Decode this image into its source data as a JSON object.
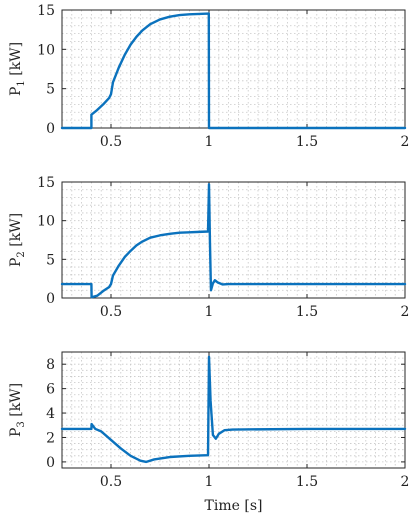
{
  "chart_data": [
    {
      "type": "line",
      "ylabel": {
        "base": "P",
        "sub": "1",
        "unit": " [kW]"
      },
      "xlim": [
        0.25,
        2
      ],
      "ylim": [
        0,
        15
      ],
      "xticks": [
        "0.5",
        "1",
        "1.5",
        "2"
      ],
      "yticks": [
        "0",
        "5",
        "10",
        "15"
      ],
      "grid": true,
      "color": "#0b72bd",
      "series": [
        {
          "x": [
            0.25,
            0.4,
            0.4,
            0.43,
            0.46,
            0.49,
            0.5,
            0.51,
            0.54,
            0.57,
            0.6,
            0.63,
            0.66,
            0.7,
            0.75,
            0.8,
            0.85,
            0.9,
            0.95,
            0.999,
            1.0,
            1.05,
            1.5,
            2.0
          ],
          "y": [
            0,
            0,
            1.7,
            2.3,
            3.0,
            3.8,
            4.3,
            5.8,
            7.7,
            9.3,
            10.6,
            11.6,
            12.4,
            13.2,
            13.8,
            14.15,
            14.35,
            14.45,
            14.5,
            14.55,
            0,
            0,
            0,
            0
          ]
        }
      ]
    },
    {
      "type": "line",
      "ylabel": {
        "base": "P",
        "sub": "2",
        "unit": " [kW]"
      },
      "xlim": [
        0.25,
        2
      ],
      "ylim": [
        0,
        15
      ],
      "xticks": [
        "0.5",
        "1",
        "1.5",
        "2"
      ],
      "yticks": [
        "0",
        "5",
        "10",
        "15"
      ],
      "grid": true,
      "color": "#0b72bd",
      "series": [
        {
          "x": [
            0.25,
            0.4,
            0.401,
            0.43,
            0.46,
            0.49,
            0.5,
            0.51,
            0.54,
            0.57,
            0.6,
            0.63,
            0.66,
            0.7,
            0.75,
            0.8,
            0.85,
            0.9,
            0.95,
            0.995,
            1.0,
            1.005,
            1.01,
            1.02,
            1.03,
            1.045,
            1.07,
            1.1,
            1.5,
            2.0
          ],
          "y": [
            1.8,
            1.8,
            0.1,
            0.3,
            0.9,
            1.4,
            1.8,
            2.9,
            4.2,
            5.3,
            6.1,
            6.8,
            7.3,
            7.8,
            8.1,
            8.3,
            8.45,
            8.5,
            8.55,
            8.6,
            14.7,
            7.0,
            1.0,
            1.9,
            2.3,
            2.0,
            1.75,
            1.8,
            1.8,
            1.8
          ]
        }
      ]
    },
    {
      "type": "line",
      "ylabel": {
        "base": "P",
        "sub": "3",
        "unit": " [kW]"
      },
      "xlim": [
        0.25,
        2
      ],
      "ylim": [
        -0.5,
        9
      ],
      "xticks": [
        "0.5",
        "1",
        "1.5",
        "2"
      ],
      "yticks": [
        "0",
        "2",
        "4",
        "6",
        "8"
      ],
      "yticksValues": [
        0,
        2,
        4,
        6,
        8
      ],
      "xlabel": "Time [s]",
      "grid": true,
      "color": "#0b72bd",
      "series": [
        {
          "x": [
            0.25,
            0.4,
            0.401,
            0.42,
            0.45,
            0.5,
            0.55,
            0.6,
            0.65,
            0.68,
            0.72,
            0.8,
            0.9,
            0.995,
            1.0,
            1.008,
            1.02,
            1.035,
            1.05,
            1.08,
            1.12,
            1.5,
            2.0
          ],
          "y": [
            2.7,
            2.7,
            3.1,
            2.7,
            2.5,
            1.8,
            1.1,
            0.5,
            0.1,
            0.0,
            0.2,
            0.4,
            0.5,
            0.55,
            8.6,
            5.0,
            2.2,
            1.9,
            2.3,
            2.6,
            2.65,
            2.7,
            2.7
          ]
        }
      ]
    }
  ]
}
